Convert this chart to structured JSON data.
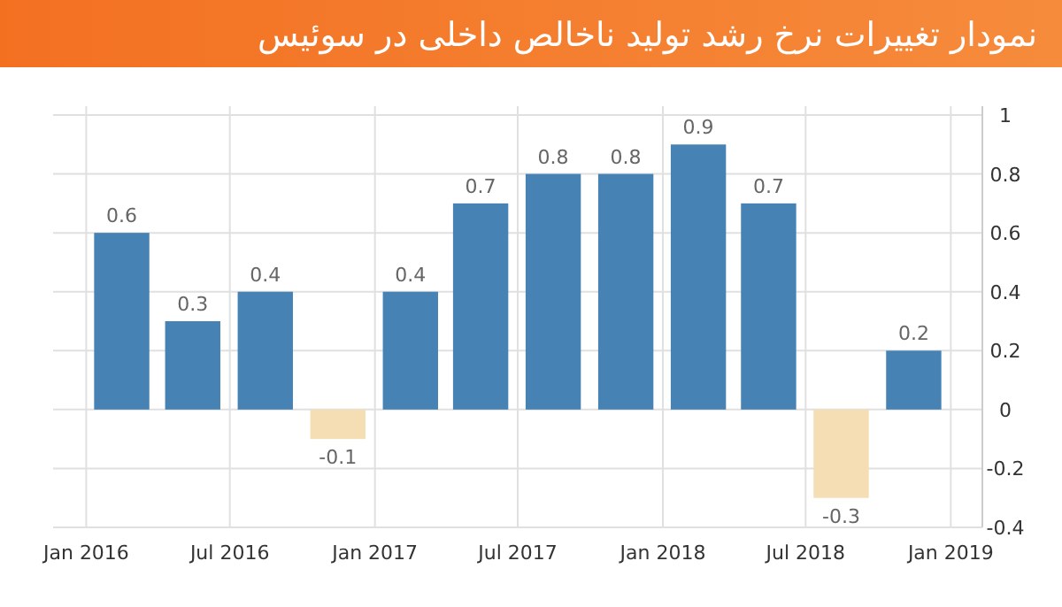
{
  "chart_data": {
    "type": "bar",
    "title": "نمودار تغییرات نرخ رشد تولید ناخالص داخلی در سوئیس",
    "x": [
      "2016-02-15",
      "2016-05-15",
      "2016-08-15",
      "2016-11-15",
      "2017-02-15",
      "2017-05-15",
      "2017-08-15",
      "2017-11-15",
      "2018-02-15",
      "2018-05-15",
      "2018-08-15",
      "2018-11-15"
    ],
    "values": [
      0.6,
      0.3,
      0.4,
      -0.1,
      0.4,
      0.7,
      0.8,
      0.8,
      0.9,
      0.7,
      -0.3,
      0.2
    ],
    "colors": [
      "#4682b4",
      "#4682b4",
      "#4682b4",
      "#f5deb3",
      "#4682b4",
      "#4682b4",
      "#4682b4",
      "#4682b4",
      "#4682b4",
      "#4682b4",
      "#f5deb3",
      "#4682b4"
    ],
    "data_labels": true,
    "xlim": [
      "2015-11-20",
      "2019-02-10"
    ],
    "xticks": [
      {
        "value": "2016-01",
        "label": "Jan 2016"
      },
      {
        "value": "2016-07",
        "label": "Jul 2016"
      },
      {
        "value": "2017-01",
        "label": "Jan 2017"
      },
      {
        "value": "2017-07",
        "label": "Jul 2017"
      },
      {
        "value": "2018-01",
        "label": "Jan 2018"
      },
      {
        "value": "2018-07",
        "label": "Jul 2018"
      },
      {
        "value": "2019-01",
        "label": "Jan 2019"
      }
    ],
    "ylim": [
      -0.4,
      1
    ],
    "yticks": [
      -0.4,
      -0.2,
      0,
      0.2,
      0.4,
      0.6,
      0.8,
      1
    ],
    "grid": true
  }
}
